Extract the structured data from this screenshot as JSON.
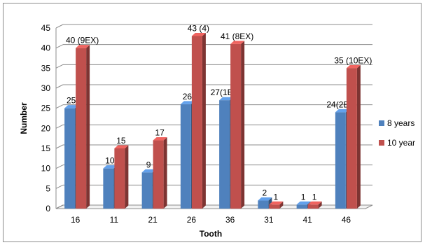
{
  "chart_data": {
    "type": "bar",
    "style": "3d-clustered-column",
    "categories": [
      "16",
      "11",
      "21",
      "26",
      "36",
      "31",
      "41",
      "46"
    ],
    "series": [
      {
        "name": "8 years",
        "color": "#4f81bd",
        "values": [
          25,
          10,
          9,
          26,
          27,
          2,
          1,
          24
        ],
        "labels": [
          "25",
          "10",
          "9",
          "26",
          "27(1EX)",
          "2",
          "1",
          "24(2EX)"
        ]
      },
      {
        "name": "10 year",
        "color": "#c0504d",
        "values": [
          40,
          15,
          17,
          43,
          41,
          1,
          1,
          35
        ],
        "labels": [
          "40 (9EX)",
          "15",
          "17",
          "43 (4)",
          "41 (8EX)",
          "1",
          "1",
          "35 (10EX)"
        ]
      }
    ],
    "title": "",
    "xlabel": "Tooth",
    "ylabel": "Number",
    "ylim": [
      0,
      45
    ],
    "yticks": [
      0,
      5,
      10,
      15,
      20,
      25,
      30,
      35,
      40,
      45
    ],
    "grid": true,
    "legend_position": "right"
  }
}
